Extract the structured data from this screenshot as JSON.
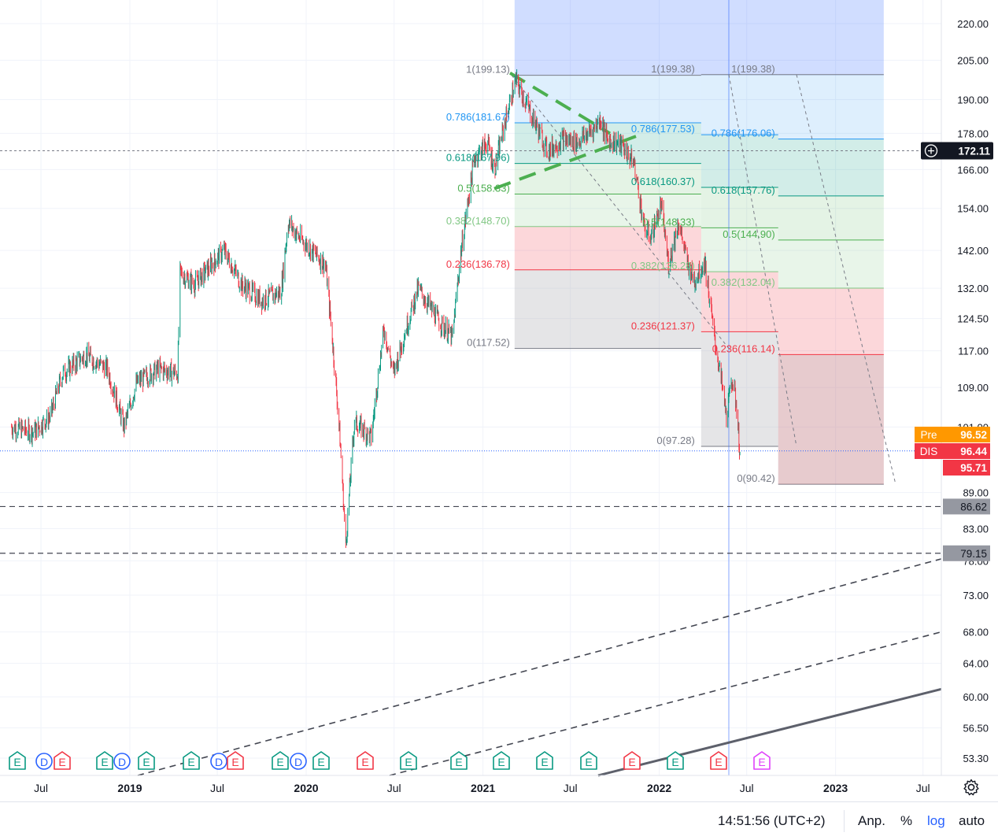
{
  "chart_data": {
    "type": "candlestick",
    "symbol": "DIS",
    "y_scale": "log",
    "y_ticks": [
      "220.00",
      "205.00",
      "190.00",
      "178.00",
      "166.00",
      "154.00",
      "142.00",
      "132.00",
      "124.50",
      "117.00",
      "109.00",
      "101.00",
      "89.00",
      "83.00",
      "78.00",
      "73.00",
      "68.00",
      "64.00",
      "60.00",
      "56.50",
      "53.30"
    ],
    "x_ticks": [
      {
        "label": "Jul",
        "bold": false
      },
      {
        "label": "2019",
        "bold": true
      },
      {
        "label": "Jul",
        "bold": false
      },
      {
        "label": "2020",
        "bold": true
      },
      {
        "label": "Jul",
        "bold": false
      },
      {
        "label": "2021",
        "bold": true
      },
      {
        "label": "Jul",
        "bold": false
      },
      {
        "label": "2022",
        "bold": true
      },
      {
        "label": "Jul",
        "bold": false
      },
      {
        "label": "2023",
        "bold": true
      },
      {
        "label": "Jul",
        "bold": false
      }
    ],
    "price_path": [
      [
        "2018-05-01",
        101
      ],
      [
        "2018-06-15",
        100
      ],
      [
        "2018-07-20",
        103
      ],
      [
        "2018-08-15",
        112
      ],
      [
        "2018-10-01",
        116
      ],
      [
        "2018-11-15",
        113
      ],
      [
        "2018-12-20",
        101
      ],
      [
        "2019-01-15",
        110
      ],
      [
        "2019-03-01",
        113
      ],
      [
        "2019-04-10",
        112
      ],
      [
        "2019-04-15",
        136
      ],
      [
        "2019-05-15",
        133
      ],
      [
        "2019-07-15",
        142
      ],
      [
        "2019-08-20",
        133
      ],
      [
        "2019-10-01",
        129
      ],
      [
        "2019-11-10",
        131
      ],
      [
        "2019-11-25",
        150
      ],
      [
        "2019-12-15",
        146
      ],
      [
        "2020-01-20",
        141
      ],
      [
        "2020-02-10",
        138
      ],
      [
        "2020-03-10",
        100
      ],
      [
        "2020-03-23",
        80
      ],
      [
        "2020-04-10",
        102
      ],
      [
        "2020-05-15",
        99
      ],
      [
        "2020-06-10",
        122
      ],
      [
        "2020-06-30",
        112
      ],
      [
        "2020-08-10",
        128
      ],
      [
        "2020-08-20",
        132
      ],
      [
        "2020-10-01",
        124
      ],
      [
        "2020-10-30",
        120
      ],
      [
        "2020-11-15",
        140
      ],
      [
        "2020-12-15",
        170
      ],
      [
        "2021-01-10",
        175
      ],
      [
        "2021-01-25",
        166
      ],
      [
        "2021-02-20",
        185
      ],
      [
        "2021-03-10",
        197
      ],
      [
        "2021-04-10",
        185
      ],
      [
        "2021-05-15",
        172
      ],
      [
        "2021-06-15",
        176
      ],
      [
        "2021-07-15",
        175
      ],
      [
        "2021-08-15",
        179
      ],
      [
        "2021-09-01",
        183
      ],
      [
        "2021-09-15",
        176
      ],
      [
        "2021-10-15",
        174
      ],
      [
        "2021-11-10",
        168
      ],
      [
        "2021-12-01",
        148
      ],
      [
        "2021-12-15",
        146
      ],
      [
        "2022-01-05",
        155
      ],
      [
        "2022-01-20",
        138
      ],
      [
        "2022-02-10",
        150
      ],
      [
        "2022-03-01",
        138
      ],
      [
        "2022-03-15",
        134
      ],
      [
        "2022-04-05",
        139
      ],
      [
        "2022-04-25",
        120
      ],
      [
        "2022-05-10",
        110
      ],
      [
        "2022-05-20",
        103
      ],
      [
        "2022-06-01",
        111
      ],
      [
        "2022-06-10",
        105
      ],
      [
        "2022-06-17",
        95.7
      ]
    ],
    "fib_levels": [
      {
        "set": "left",
        "levels": [
          {
            "label": "1(199.13)",
            "price": 199.13,
            "color": "#787b86"
          },
          {
            "label": "0.786(181.67)",
            "price": 181.67,
            "color": "#2196f3"
          },
          {
            "label": "0.618(167.96)",
            "price": 167.96,
            "color": "#089981"
          },
          {
            "label": "0.5(158.33)",
            "price": 158.33,
            "color": "#4caf50"
          },
          {
            "label": "0.382(148.70)",
            "price": 148.7,
            "color": "#81c784"
          },
          {
            "label": "0.236(136.78)",
            "price": 136.78,
            "color": "#f23645"
          },
          {
            "label": "0(117.52)",
            "price": 117.52,
            "color": "#787b86"
          }
        ]
      },
      {
        "set": "middle",
        "levels": [
          {
            "label": "1(199.38)",
            "price": 199.38,
            "color": "#787b86"
          },
          {
            "label": "0.786(177.53)",
            "price": 177.53,
            "color": "#2196f3"
          },
          {
            "label": "0.618(160.37)",
            "price": 160.37,
            "color": "#089981"
          },
          {
            "label": "0.5(148.33)",
            "price": 148.33,
            "color": "#4caf50"
          },
          {
            "label": "0.382(136.28)",
            "price": 136.28,
            "color": "#81c784"
          },
          {
            "label": "0.236(121.37)",
            "price": 121.37,
            "color": "#f23645"
          },
          {
            "label": "0(97.28)",
            "price": 97.28,
            "color": "#787b86"
          }
        ]
      },
      {
        "set": "right",
        "levels": [
          {
            "label": "1(199.38)",
            "price": 199.38,
            "color": "#787b86"
          },
          {
            "label": "0.786(176.06)",
            "price": 176.06,
            "color": "#2196f3"
          },
          {
            "label": "0.618(157.76)",
            "price": 157.76,
            "color": "#089981"
          },
          {
            "label": "0.5(144.90)",
            "price": 144.9,
            "color": "#4caf50"
          },
          {
            "label": "0.382(132.04)",
            "price": 132.04,
            "color": "#81c784"
          },
          {
            "label": "0.236(116.14)",
            "price": 116.14,
            "color": "#f23645"
          },
          {
            "label": "0(90.42)",
            "price": 90.42,
            "color": "#787b86"
          }
        ]
      }
    ],
    "horizontal_lines": [
      {
        "price": 86.62,
        "label": "86.62"
      },
      {
        "price": 79.15,
        "label": "79.15"
      }
    ],
    "crosshair": {
      "price": 172.11,
      "label": "172.11"
    },
    "price_badges": [
      {
        "tag": "Pre",
        "value": "96.52",
        "color": "#ff9800"
      },
      {
        "tag": "DIS",
        "value": "96.44",
        "color": "#f23645"
      },
      {
        "tag": "",
        "value": "95.71",
        "color": "#f23645"
      }
    ],
    "events": [
      {
        "type": "E",
        "color": "#089981"
      },
      {
        "type": "D",
        "color": "#2962ff"
      },
      {
        "type": "E",
        "color": "#f23645"
      },
      {
        "type": "E",
        "color": "#089981"
      },
      {
        "type": "D",
        "color": "#2962ff"
      },
      {
        "type": "E",
        "color": "#089981"
      },
      {
        "type": "E",
        "color": "#089981"
      },
      {
        "type": "D",
        "color": "#2962ff"
      },
      {
        "type": "E",
        "color": "#f23645"
      },
      {
        "type": "E",
        "color": "#089981"
      },
      {
        "type": "D",
        "color": "#2962ff"
      },
      {
        "type": "E",
        "color": "#089981"
      },
      {
        "type": "E",
        "color": "#f23645"
      },
      {
        "type": "E",
        "color": "#089981"
      },
      {
        "type": "E",
        "color": "#089981"
      },
      {
        "type": "E",
        "color": "#089981"
      },
      {
        "type": "E",
        "color": "#089981"
      },
      {
        "type": "E",
        "color": "#089981"
      },
      {
        "type": "E",
        "color": "#f23645"
      },
      {
        "type": "E",
        "color": "#089981"
      },
      {
        "type": "E",
        "color": "#f23645"
      },
      {
        "type": "E",
        "color": "#e040fb"
      }
    ],
    "colors": {
      "up": "#089981",
      "down": "#f23645",
      "grid": "#f0f3fa"
    }
  },
  "bottom_bar": {
    "clock": "14:51:56 (UTC+2)",
    "adj": "Anp.",
    "percent": "%",
    "log": "log",
    "auto": "auto"
  },
  "icons": {
    "settings": "gear-icon",
    "crosshair_add": "plus-circle-icon"
  }
}
